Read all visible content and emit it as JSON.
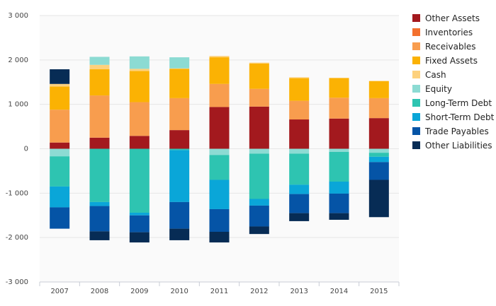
{
  "chart_data": {
    "type": "bar",
    "stacked": true,
    "categories": [
      "2007",
      "2008",
      "2009",
      "2010",
      "2011",
      "2012",
      "2013",
      "2014",
      "2015"
    ],
    "ylim": [
      -3000,
      3000
    ],
    "yticks": [
      -3000,
      -2000,
      -1000,
      0,
      1000,
      2000,
      3000
    ],
    "ytick_labels": [
      "-3 000",
      "-2 000",
      "-1 000",
      "0",
      "1 000",
      "2 000",
      "3 000"
    ],
    "grid": true,
    "legend_position": "right",
    "series": [
      {
        "name": "Other Assets",
        "color": "#a3191e",
        "values": [
          140,
          250,
          290,
          420,
          940,
          950,
          660,
          680,
          690
        ]
      },
      {
        "name": "Inventories",
        "color": "#f3702e",
        "values": [
          0,
          0,
          0,
          0,
          0,
          0,
          0,
          0,
          0
        ]
      },
      {
        "name": "Receivables",
        "color": "#f89d4e",
        "values": [
          740,
          950,
          760,
          720,
          520,
          400,
          420,
          470,
          450
        ]
      },
      {
        "name": "Fixed Assets",
        "color": "#fbb203",
        "values": [
          520,
          590,
          700,
          660,
          600,
          570,
          510,
          440,
          380
        ]
      },
      {
        "name": "Cash",
        "color": "#fdd17d",
        "values": [
          60,
          100,
          50,
          10,
          30,
          20,
          20,
          10,
          10
        ]
      },
      {
        "name": "Equity",
        "color": "#8cdbd3",
        "values": [
          -170,
          180,
          280,
          250,
          -140,
          -110,
          -110,
          -70,
          -90
        ]
      },
      {
        "name": "Long-Term Debt",
        "color": "#2ec4b1",
        "values": [
          -680,
          -1200,
          -1440,
          -30,
          -560,
          -1020,
          -700,
          -670,
          -90
        ]
      },
      {
        "name": "Short-Term Debt",
        "color": "#0aa6d8",
        "values": [
          -470,
          -90,
          -60,
          -1170,
          -660,
          -150,
          -210,
          -270,
          -120
        ]
      },
      {
        "name": "Trade Payables",
        "color": "#0554a6",
        "values": [
          -480,
          -570,
          -380,
          -600,
          -510,
          -470,
          -430,
          -440,
          -400
        ]
      },
      {
        "name": "Other Liabilities",
        "color": "#072c55",
        "values": [
          330,
          -200,
          -230,
          -260,
          -240,
          -170,
          -180,
          -150,
          -840
        ]
      }
    ]
  }
}
